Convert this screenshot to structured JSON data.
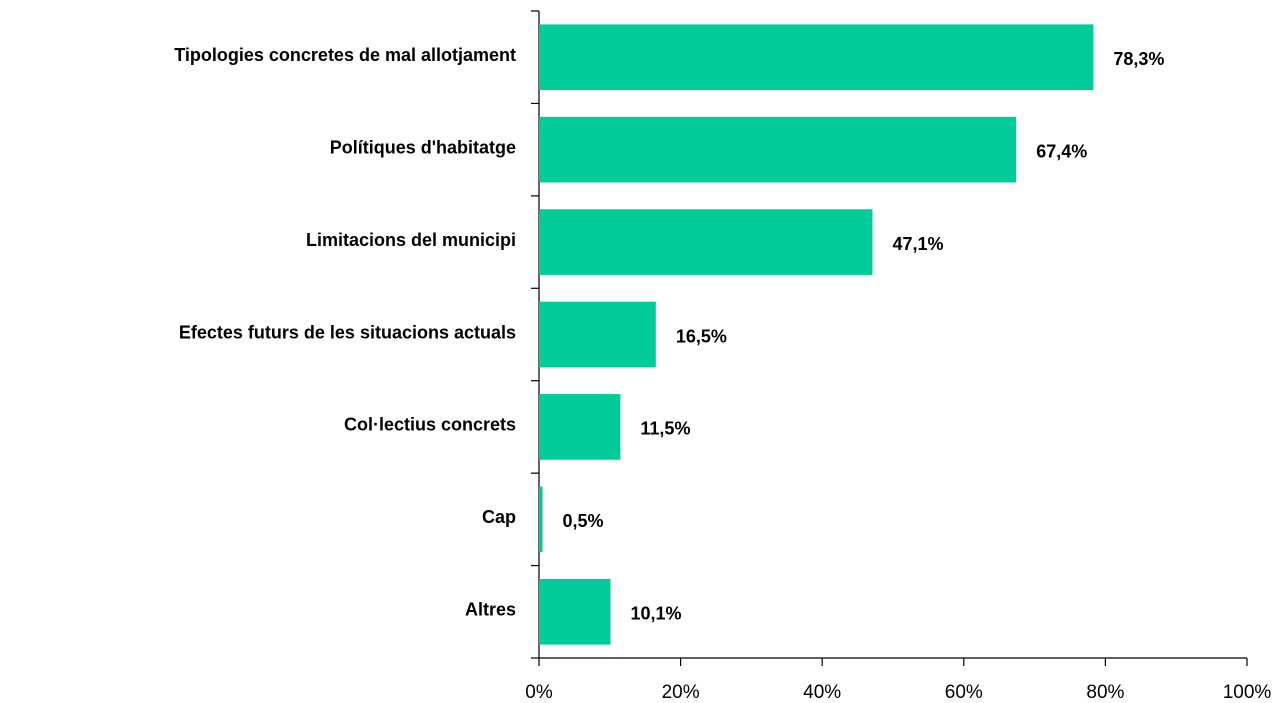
{
  "chart_data": {
    "type": "bar",
    "orientation": "horizontal",
    "categories": [
      "Tipologies concretes de mal allotjament",
      "Polítiques d'habitatge",
      "Limitacions del municipi",
      "Efectes futurs de les situacions actuals",
      "Col·lectius concrets",
      "Cap",
      "Altres"
    ],
    "values": [
      78.3,
      67.4,
      47.1,
      16.5,
      11.5,
      0.5,
      10.1
    ],
    "value_labels": [
      "78,3%",
      "67,4%",
      "47,1%",
      "16,5%",
      "11,5%",
      "0,5%",
      "10,1%"
    ],
    "color": "#00cc99",
    "xlim": [
      0,
      100
    ],
    "xticks": [
      {
        "value": 0,
        "label": "0%"
      },
      {
        "value": 20,
        "label": "20%"
      },
      {
        "value": 40,
        "label": "40%"
      },
      {
        "value": 60,
        "label": "60%"
      },
      {
        "value": 80,
        "label": "80%"
      },
      {
        "value": 100,
        "label": "100%"
      }
    ],
    "grid": false
  }
}
